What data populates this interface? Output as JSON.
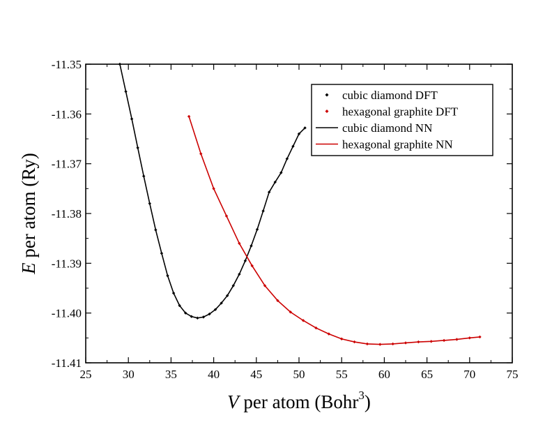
{
  "chart_data": {
    "type": "line",
    "title": "",
    "xlabel": {
      "var": "V",
      "text": " per atom (Bohr",
      "sup": "3",
      "close": ")"
    },
    "ylabel": {
      "var": "E",
      "text": " per atom (Ry)"
    },
    "xlim": [
      25,
      75
    ],
    "ylim": [
      -11.41,
      -11.35
    ],
    "x_ticks": [
      25,
      30,
      35,
      40,
      45,
      50,
      55,
      60,
      65,
      70,
      75
    ],
    "x_tick_labels": [
      "25",
      "30",
      "35",
      "40",
      "45",
      "50",
      "55",
      "60",
      "65",
      "70",
      "75"
    ],
    "y_ticks": [
      -11.41,
      -11.4,
      -11.39,
      -11.38,
      -11.37,
      -11.36,
      -11.35
    ],
    "y_tick_labels": [
      "-11.41",
      "-11.40",
      "-11.39",
      "-11.38",
      "-11.37",
      "-11.36",
      "-11.35"
    ],
    "grid": false,
    "legend_position": "top-right",
    "series": [
      {
        "name": "cubic diamond DFT",
        "kind": "points",
        "color": "#000000",
        "x": [
          29.0,
          29.7,
          30.4,
          31.1,
          31.8,
          32.5,
          33.2,
          33.9,
          34.6,
          35.3,
          36.0,
          36.7,
          37.4,
          38.1,
          38.8,
          39.5,
          40.2,
          40.9,
          41.6,
          42.3,
          43.0,
          43.7,
          44.4,
          45.1,
          45.8,
          46.5,
          47.2,
          47.9,
          48.6,
          49.3,
          50.0,
          50.7
        ],
        "y": [
          -11.35,
          -11.3555,
          -11.361,
          -11.3668,
          -11.3725,
          -11.378,
          -11.3833,
          -11.388,
          -11.3925,
          -11.396,
          -11.3985,
          -11.4,
          -11.4007,
          -11.401,
          -11.4008,
          -11.4002,
          -11.3993,
          -11.398,
          -11.3965,
          -11.3945,
          -11.3922,
          -11.3895,
          -11.3865,
          -11.3832,
          -11.3795,
          -11.3757,
          -11.3737,
          -11.3718,
          -11.369,
          -11.3665,
          -11.364,
          -11.3628
        ]
      },
      {
        "name": "hexagonal graphite DFT",
        "kind": "points",
        "color": "#cc0000",
        "x": [
          37.1,
          38.5,
          40.0,
          41.5,
          43.0,
          44.5,
          46.0,
          47.5,
          49.0,
          50.5,
          52.0,
          53.5,
          55.0,
          56.5,
          58.0,
          59.5,
          61.0,
          62.5,
          64.0,
          65.5,
          67.0,
          68.5,
          70.0,
          71.2
        ],
        "y": [
          -11.3605,
          -11.368,
          -11.375,
          -11.3805,
          -11.386,
          -11.3905,
          -11.3945,
          -11.3975,
          -11.3998,
          -11.4015,
          -11.403,
          -11.4042,
          -11.4052,
          -11.4058,
          -11.4062,
          -11.4063,
          -11.4062,
          -11.406,
          -11.4058,
          -11.4057,
          -11.4055,
          -11.4053,
          -11.405,
          -11.4048
        ]
      },
      {
        "name": "cubic diamond NN",
        "kind": "line",
        "color": "#000000",
        "x": [
          29.0,
          29.7,
          30.4,
          31.1,
          31.8,
          32.5,
          33.2,
          33.9,
          34.6,
          35.3,
          36.0,
          36.7,
          37.4,
          38.1,
          38.8,
          39.5,
          40.2,
          40.9,
          41.6,
          42.3,
          43.0,
          43.7,
          44.4,
          45.1,
          45.8,
          46.5,
          47.2,
          47.9,
          48.6,
          49.3,
          50.0,
          50.7
        ],
        "y": [
          -11.35,
          -11.3555,
          -11.361,
          -11.3668,
          -11.3725,
          -11.378,
          -11.3833,
          -11.388,
          -11.3925,
          -11.396,
          -11.3985,
          -11.4,
          -11.4007,
          -11.401,
          -11.4008,
          -11.4002,
          -11.3993,
          -11.398,
          -11.3965,
          -11.3945,
          -11.3922,
          -11.3895,
          -11.3865,
          -11.3832,
          -11.3795,
          -11.3757,
          -11.3737,
          -11.3718,
          -11.369,
          -11.3665,
          -11.364,
          -11.3628
        ]
      },
      {
        "name": "hexagonal graphite NN",
        "kind": "line",
        "color": "#cc0000",
        "x": [
          37.1,
          38.5,
          40.0,
          41.5,
          43.0,
          44.5,
          46.0,
          47.5,
          49.0,
          50.5,
          52.0,
          53.5,
          55.0,
          56.5,
          58.0,
          59.5,
          61.0,
          62.5,
          64.0,
          65.5,
          67.0,
          68.5,
          70.0,
          71.2
        ],
        "y": [
          -11.3605,
          -11.368,
          -11.375,
          -11.3805,
          -11.386,
          -11.3905,
          -11.3945,
          -11.3975,
          -11.3998,
          -11.4015,
          -11.403,
          -11.4042,
          -11.4052,
          -11.4058,
          -11.4062,
          -11.4063,
          -11.4062,
          -11.406,
          -11.4058,
          -11.4057,
          -11.4055,
          -11.4053,
          -11.405,
          -11.4048
        ]
      }
    ]
  }
}
